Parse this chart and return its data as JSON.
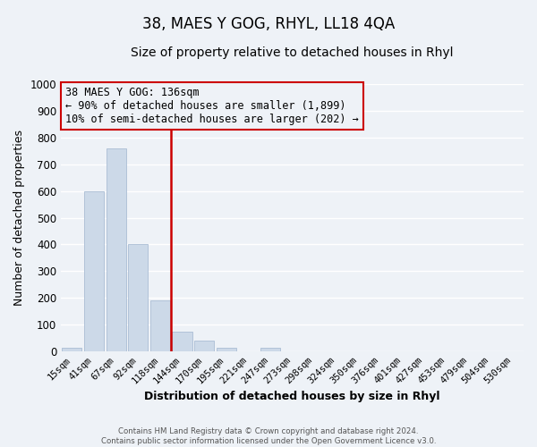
{
  "title": "38, MAES Y GOG, RHYL, LL18 4QA",
  "subtitle": "Size of property relative to detached houses in Rhyl",
  "xlabel": "Distribution of detached houses by size in Rhyl",
  "ylabel": "Number of detached properties",
  "bar_labels": [
    "15sqm",
    "41sqm",
    "67sqm",
    "92sqm",
    "118sqm",
    "144sqm",
    "170sqm",
    "195sqm",
    "221sqm",
    "247sqm",
    "273sqm",
    "298sqm",
    "324sqm",
    "350sqm",
    "376sqm",
    "401sqm",
    "427sqm",
    "453sqm",
    "479sqm",
    "504sqm",
    "530sqm"
  ],
  "bar_values": [
    15,
    600,
    760,
    400,
    190,
    75,
    40,
    15,
    0,
    12,
    0,
    0,
    0,
    0,
    0,
    0,
    0,
    0,
    0,
    0,
    0
  ],
  "bar_color": "#ccd9e8",
  "bar_edge_color": "#aabdd4",
  "vline_color": "#cc0000",
  "annotation_title": "38 MAES Y GOG: 136sqm",
  "annotation_line1": "← 90% of detached houses are smaller (1,899)",
  "annotation_line2": "10% of semi-detached houses are larger (202) →",
  "annotation_box_edge_color": "#cc0000",
  "ylim": [
    0,
    1000
  ],
  "yticks": [
    0,
    100,
    200,
    300,
    400,
    500,
    600,
    700,
    800,
    900,
    1000
  ],
  "footer1": "Contains HM Land Registry data © Crown copyright and database right 2024.",
  "footer2": "Contains public sector information licensed under the Open Government Licence v3.0.",
  "bg_color": "#eef2f7",
  "grid_color": "#ffffff",
  "title_fontsize": 12,
  "subtitle_fontsize": 10,
  "xlabel_fontsize": 9,
  "ylabel_fontsize": 9
}
